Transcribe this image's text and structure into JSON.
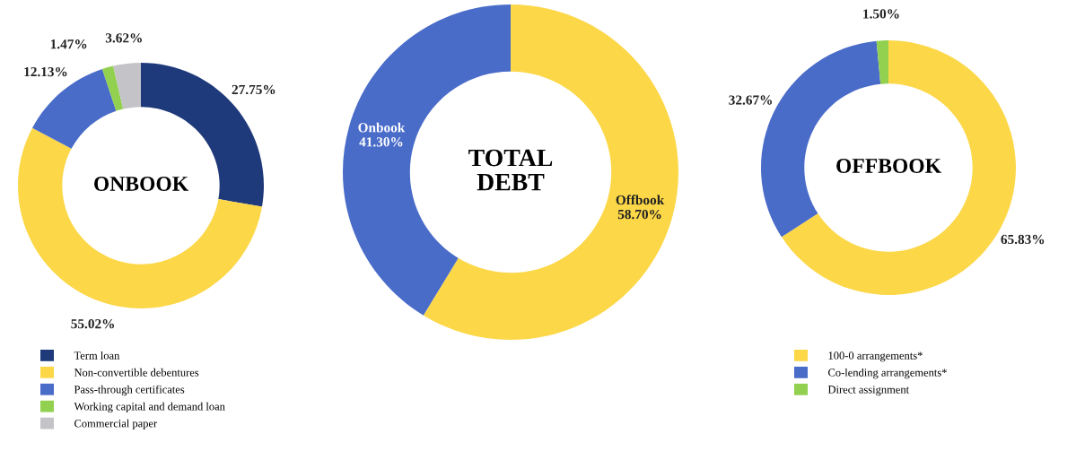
{
  "chart_data": [
    {
      "type": "donut",
      "title": "ONBOOK",
      "categories": [
        "Term loan",
        "Non-convertible debentures",
        "Pass-through certificates",
        "Working capital and demand loan",
        "Commercial paper"
      ],
      "values": [
        27.75,
        55.02,
        12.13,
        1.47,
        3.62
      ],
      "colors": [
        "#1f3a7a",
        "#fcd748",
        "#4a6cc9",
        "#92d050",
        "#c4c4c8"
      ],
      "value_labels": [
        "27.75%",
        "55.02%",
        "12.13%",
        "1.47%",
        "3.62%"
      ],
      "legend": "bottom left"
    },
    {
      "type": "donut",
      "title": "TOTAL\nDEBT",
      "categories": [
        "Offbook",
        "Onbook"
      ],
      "values": [
        58.7,
        41.3
      ],
      "colors": [
        "#fcd748",
        "#4a6cc9"
      ],
      "value_labels": [
        "58.70%",
        "41.30%"
      ],
      "legend": false
    },
    {
      "type": "donut",
      "title": "OFFBOOK",
      "categories": [
        "100-0 arrangements*",
        "Co-lending arrangements*",
        "Direct assignment"
      ],
      "values": [
        65.83,
        32.67,
        1.5
      ],
      "colors": [
        "#fcd748",
        "#4a6cc9",
        "#92d050"
      ],
      "value_labels": [
        "65.83%",
        "32.67%",
        "1.50%"
      ],
      "legend": "bottom left"
    }
  ]
}
